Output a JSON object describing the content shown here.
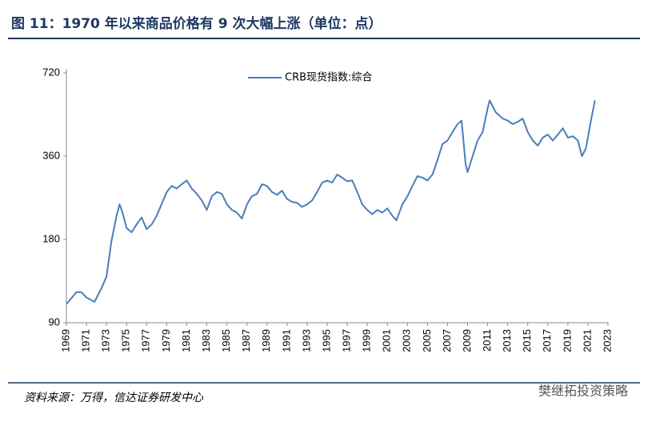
{
  "chart_data": {
    "type": "line",
    "title": "图 11：1970 年以来商品价格有 9 次大幅上涨（单位：点）",
    "source": "资料来源：万得，信达证券研发中心",
    "watermark": "樊继拓投资策略",
    "log_scale": true,
    "legend": "top",
    "xlim": [
      1969,
      2023
    ],
    "xticks": [
      1969,
      1971,
      1973,
      1975,
      1977,
      1979,
      1981,
      1983,
      1985,
      1987,
      1989,
      1991,
      1993,
      1995,
      1997,
      1999,
      2001,
      2003,
      2005,
      2007,
      2009,
      2011,
      2013,
      2015,
      2017,
      2019,
      2021,
      2023
    ],
    "ylim": [
      90,
      720
    ],
    "yticks": [
      90,
      180,
      360,
      720
    ],
    "x": [
      1969.0,
      1970.0,
      1970.5,
      1971.0,
      1971.8,
      1972.5,
      1973.0,
      1973.5,
      1974.0,
      1974.3,
      1974.6,
      1975.0,
      1975.5,
      1976.0,
      1976.5,
      1977.0,
      1977.5,
      1978.0,
      1979.0,
      1979.5,
      1980.0,
      1980.5,
      1981.0,
      1981.5,
      1982.0,
      1982.5,
      1983.0,
      1983.5,
      1984.0,
      1984.5,
      1985.0,
      1985.5,
      1986.0,
      1986.5,
      1987.0,
      1987.5,
      1988.0,
      1988.5,
      1989.0,
      1989.5,
      1990.0,
      1990.5,
      1991.0,
      1991.5,
      1992.0,
      1992.5,
      1993.0,
      1993.5,
      1994.0,
      1994.5,
      1995.0,
      1995.5,
      1996.0,
      1996.5,
      1997.0,
      1997.5,
      1998.0,
      1998.5,
      1999.0,
      1999.5,
      2000.0,
      2000.5,
      2001.0,
      2001.5,
      2001.9,
      2002.5,
      2003.0,
      2003.5,
      2004.0,
      2004.5,
      2005.0,
      2005.5,
      2006.0,
      2006.5,
      2007.0,
      2007.5,
      2008.0,
      2008.4,
      2008.8,
      2009.0,
      2009.5,
      2010.0,
      2010.5,
      2011.0,
      2011.2,
      2011.8,
      2012.5,
      2013.0,
      2013.5,
      2014.0,
      2014.5,
      2015.0,
      2015.5,
      2016.0,
      2016.5,
      2017.0,
      2017.5,
      2018.0,
      2018.5,
      2019.0,
      2019.5,
      2020.0,
      2020.4,
      2020.8,
      2021.3,
      2021.7
    ],
    "series": [
      {
        "name": "CRB现货指数:综合",
        "color": "#4a7ebb",
        "values": [
          105,
          116,
          116,
          111,
          107,
          120,
          132,
          178,
          219,
          241,
          225,
          198,
          191,
          204,
          216,
          196,
          204,
          219,
          267,
          281,
          275,
          285,
          294,
          275,
          263,
          249,
          230,
          258,
          267,
          263,
          241,
          230,
          225,
          214,
          241,
          258,
          263,
          285,
          281,
          267,
          261,
          270,
          252,
          246,
          244,
          236,
          241,
          249,
          267,
          289,
          294,
          289,
          309,
          301,
          292,
          294,
          267,
          241,
          230,
          222,
          230,
          225,
          233,
          219,
          211,
          241,
          258,
          281,
          305,
          301,
          294,
          309,
          349,
          398,
          410,
          440,
          470,
          484,
          337,
          315,
          360,
          410,
          440,
          537,
          573,
          519,
          492,
          484,
          470,
          479,
          492,
          440,
          410,
          393,
          420,
          431,
          410,
          431,
          454,
          420,
          425,
          410,
          360,
          384,
          484,
          573
        ]
      }
    ]
  }
}
